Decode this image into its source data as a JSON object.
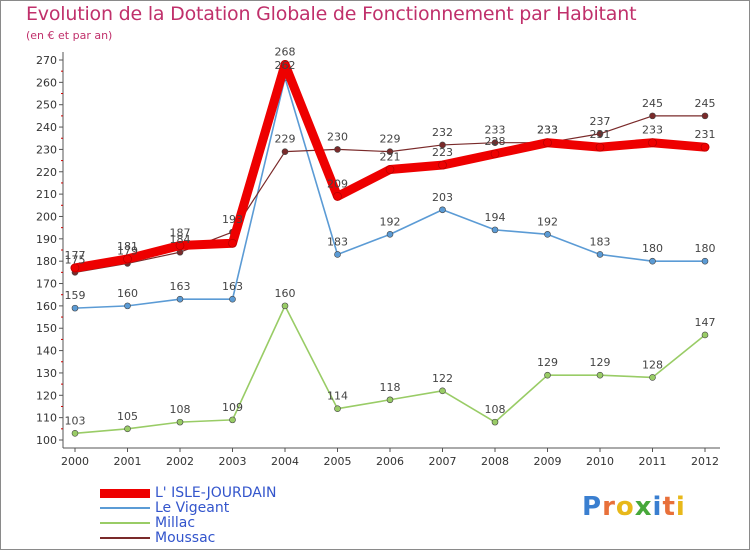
{
  "header": {
    "title": "Evolution de la Dotation Globale de Fonctionnement par Habitant",
    "subtitle": "(en € et par an)"
  },
  "logo": {
    "letters": [
      "P",
      "r",
      "o",
      "x",
      "i",
      "t",
      "i"
    ],
    "colors": [
      "#3a7fd0",
      "#e8703a",
      "#e8b81a",
      "#47a83a",
      "#3a7fd0",
      "#e8703a",
      "#e8b81a"
    ]
  },
  "chart_data": {
    "type": "line",
    "title": "Evolution de la Dotation Globale de Fonctionnement par Habitant",
    "subtitle": "(en € et par an)",
    "x": [
      2000,
      2001,
      2002,
      2003,
      2004,
      2005,
      2006,
      2007,
      2008,
      2009,
      2010,
      2011,
      2012
    ],
    "ylim": [
      100,
      270
    ],
    "yticks": [
      100,
      110,
      120,
      130,
      140,
      150,
      160,
      170,
      180,
      190,
      200,
      210,
      220,
      230,
      240,
      250,
      260,
      270
    ],
    "grid": false,
    "legend_position": "bottom-left",
    "series": [
      {
        "name": "L' ISLE-JOURDAIN",
        "color": "#ee0000",
        "values": [
          177,
          181,
          187,
          188,
          268,
          209,
          221,
          223,
          228,
          233,
          231,
          233,
          231
        ],
        "labels": [
          "177",
          "181",
          "187",
          "",
          "268",
          "209",
          "221",
          "223",
          "228",
          "233",
          "231",
          "233",
          "231"
        ]
      },
      {
        "name": "Le Vigeant",
        "color": "#5b9bd5",
        "values": [
          159,
          160,
          163,
          163,
          262,
          183,
          192,
          203,
          194,
          192,
          183,
          180,
          180
        ],
        "labels": [
          "159",
          "160",
          "163",
          "163",
          "262",
          "183",
          "192",
          "203",
          "194",
          "192",
          "183",
          "180",
          "180"
        ]
      },
      {
        "name": "Millac",
        "color": "#99cc66",
        "values": [
          103,
          105,
          108,
          109,
          160,
          114,
          118,
          122,
          108,
          129,
          129,
          128,
          147
        ],
        "labels": [
          "103",
          "105",
          "108",
          "109",
          "160",
          "114",
          "118",
          "122",
          "108",
          "129",
          "129",
          "128",
          "147"
        ]
      },
      {
        "name": "Moussac",
        "color": "#7a2a2a",
        "values": [
          175,
          179,
          184,
          193,
          229,
          230,
          229,
          232,
          233,
          233,
          237,
          245,
          245
        ],
        "labels": [
          "175",
          "179",
          "184",
          "193",
          "229",
          "230",
          "229",
          "232",
          "233",
          "233",
          "237",
          "245",
          "245"
        ]
      }
    ]
  }
}
